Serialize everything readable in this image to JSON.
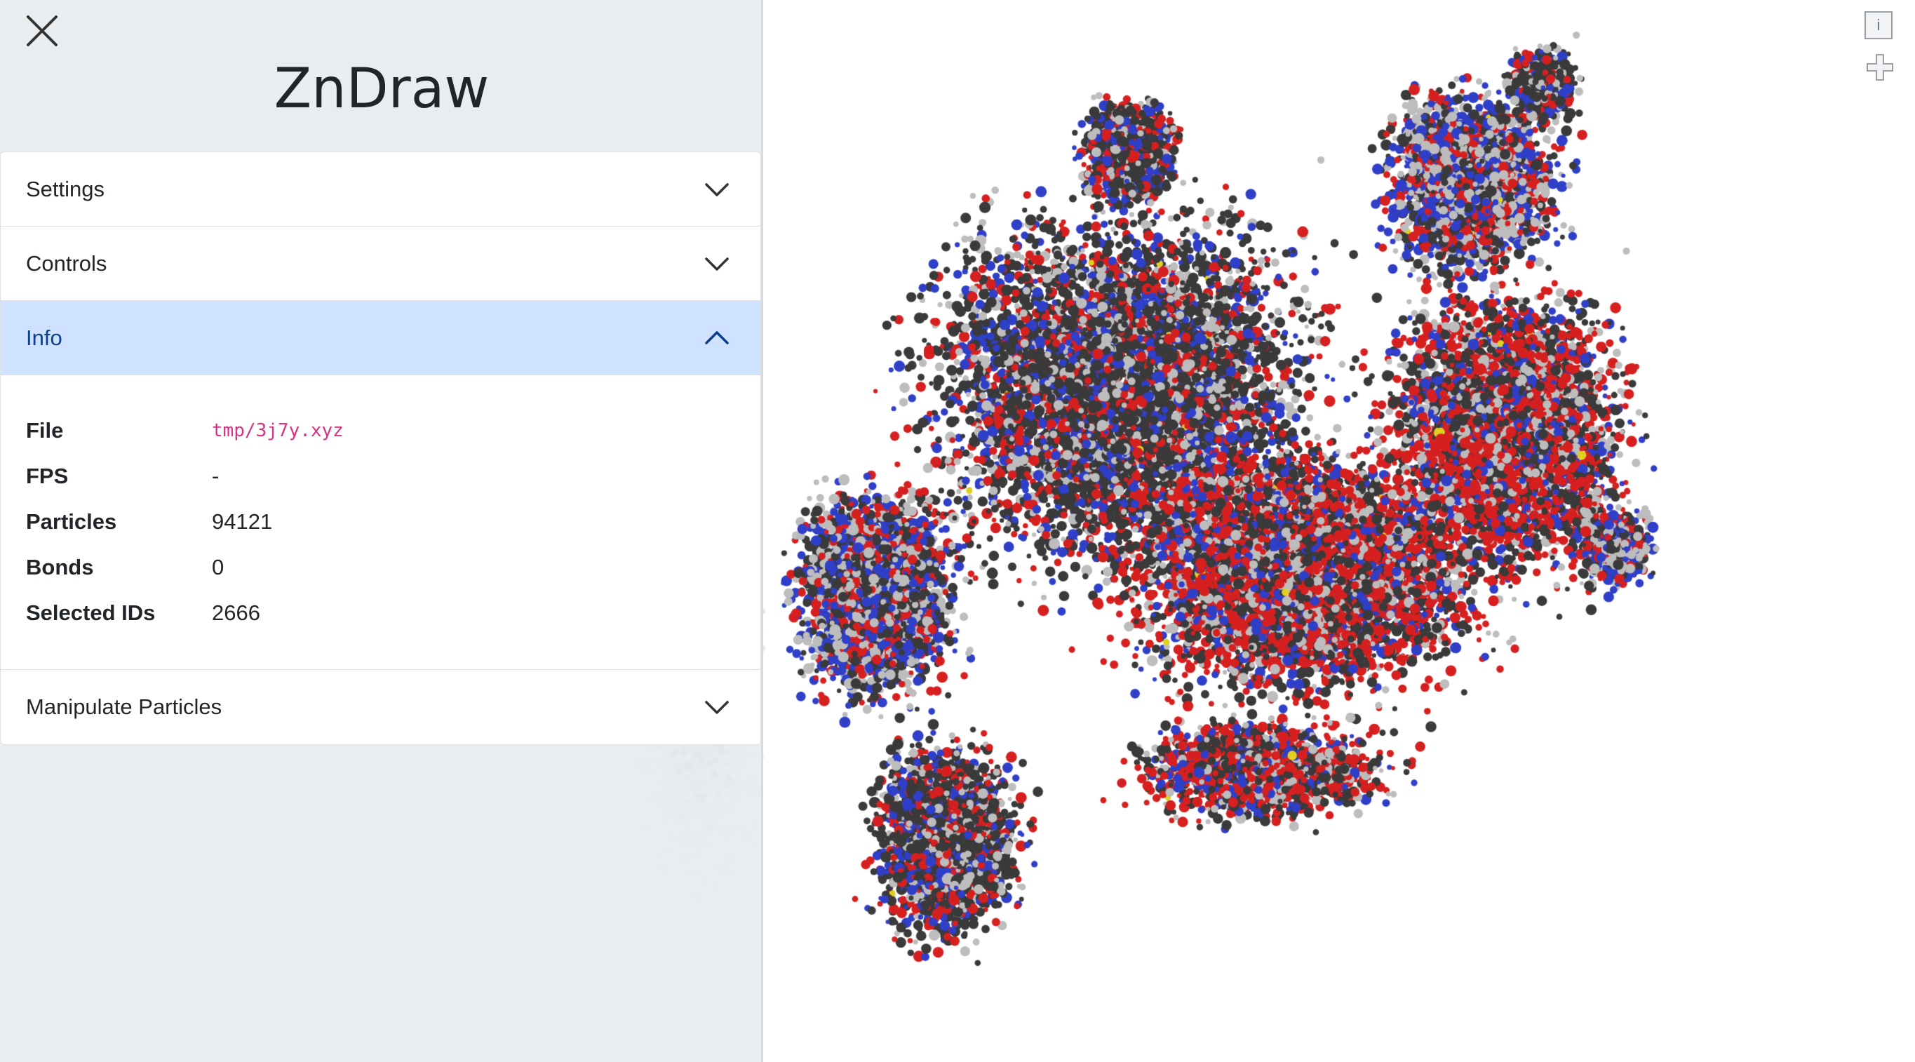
{
  "app": {
    "title": "ZnDraw"
  },
  "sidebar": {
    "sections": [
      {
        "label": "Settings",
        "expanded": false
      },
      {
        "label": "Controls",
        "expanded": false
      },
      {
        "label": "Info",
        "expanded": true
      },
      {
        "label": "Manipulate Particles",
        "expanded": false
      }
    ],
    "info": {
      "file_label": "File",
      "file_value": "tmp/3j7y.xyz",
      "fps_label": "FPS",
      "fps_value": "-",
      "particles_label": "Particles",
      "particles_value": "94121",
      "bonds_label": "Bonds",
      "bonds_value": "0",
      "selected_label": "Selected IDs",
      "selected_value": "2666"
    }
  },
  "viewport": {
    "info_button_label": "i",
    "atom_colors": {
      "carbon": "#3a3a3a",
      "oxygen": "#d62020",
      "nitrogen": "#2f3fc8",
      "hydrogen": "#bdbdbd",
      "sulfur": "#e0d020"
    }
  },
  "icons": {
    "close": "close-icon",
    "chevron_down": "chevron-down-icon",
    "chevron_up": "chevron-up-icon",
    "plus": "plus-icon"
  }
}
